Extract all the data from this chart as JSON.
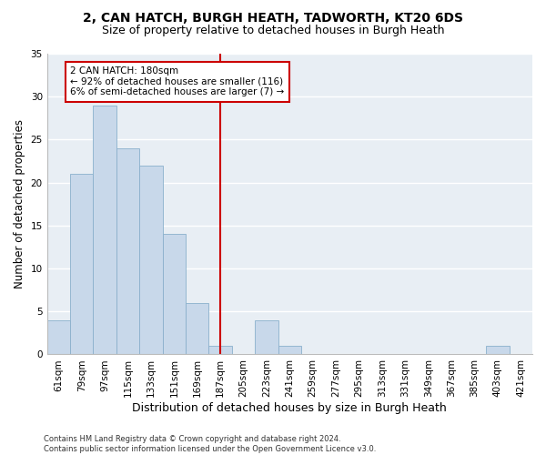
{
  "title": "2, CAN HATCH, BURGH HEATH, TADWORTH, KT20 6DS",
  "subtitle": "Size of property relative to detached houses in Burgh Heath",
  "xlabel": "Distribution of detached houses by size in Burgh Heath",
  "ylabel": "Number of detached properties",
  "categories": [
    "61sqm",
    "79sqm",
    "97sqm",
    "115sqm",
    "133sqm",
    "151sqm",
    "169sqm",
    "187sqm",
    "205sqm",
    "223sqm",
    "241sqm",
    "259sqm",
    "277sqm",
    "295sqm",
    "313sqm",
    "331sqm",
    "349sqm",
    "367sqm",
    "385sqm",
    "403sqm",
    "421sqm"
  ],
  "values": [
    4,
    21,
    29,
    24,
    22,
    14,
    6,
    1,
    0,
    4,
    1,
    0,
    0,
    0,
    0,
    0,
    0,
    0,
    0,
    1,
    0
  ],
  "bar_color": "#c8d8ea",
  "bar_edgecolor": "#8ab0cc",
  "vline_x": 7,
  "vline_color": "#cc0000",
  "annotation_text": "2 CAN HATCH: 180sqm\n← 92% of detached houses are smaller (116)\n6% of semi-detached houses are larger (7) →",
  "annotation_box_color": "#cc0000",
  "ylim": [
    0,
    35
  ],
  "yticks": [
    0,
    5,
    10,
    15,
    20,
    25,
    30,
    35
  ],
  "background_color": "#e8eef4",
  "grid_color": "#ffffff",
  "title_fontsize": 10,
  "subtitle_fontsize": 9,
  "xlabel_fontsize": 9,
  "ylabel_fontsize": 8.5,
  "tick_fontsize": 7.5,
  "ann_fontsize": 7.5,
  "footer_text": "Contains HM Land Registry data © Crown copyright and database right 2024.\nContains public sector information licensed under the Open Government Licence v3.0."
}
